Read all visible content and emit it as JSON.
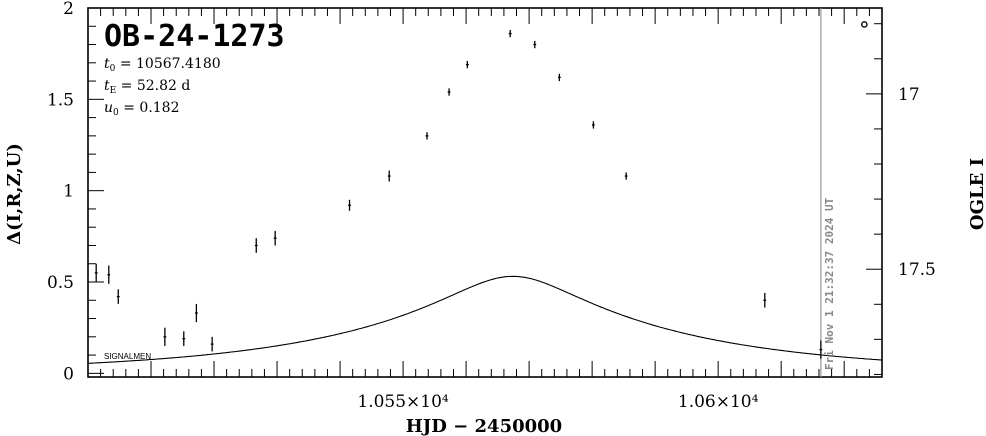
{
  "chart_data": {
    "type": "scatter",
    "title": "OB-24-1273",
    "params": {
      "t0": "10567.4180",
      "tE": "52.82",
      "tE_unit": "d",
      "u0": "0.182"
    },
    "xlabel": "HJD − 2450000",
    "ylabel_left": "Δ(I,R,Z,U)",
    "ylabel_right": "OGLE I",
    "xlim": [
      10500,
      10626
    ],
    "ylim": [
      -0.02,
      2.0
    ],
    "right_axis_mag_ticks": [
      {
        "mag": 17,
        "left_value": 1.53
      },
      {
        "mag": 17.5,
        "left_value": 0.57
      }
    ],
    "x_ticks": [
      {
        "value": 10550,
        "label": "1.055×10⁴"
      },
      {
        "value": 10600,
        "label": "1.06×10⁴"
      }
    ],
    "y_ticks": [
      {
        "value": 0,
        "label": "0"
      },
      {
        "value": 0.5,
        "label": "0.5"
      },
      {
        "value": 1,
        "label": "1"
      },
      {
        "value": 1.5,
        "label": "1.5"
      },
      {
        "value": 2,
        "label": "2"
      }
    ],
    "right_ticks": [
      {
        "label": "17"
      },
      {
        "label": "17.5"
      }
    ],
    "series": [
      {
        "x": [
          10501.3,
          10503.3,
          10504.8,
          10512.2,
          10515.2,
          10517.2,
          10519.7,
          10526.7,
          10529.7,
          10541.5,
          10547.8,
          10553.8,
          10557.3,
          10560.2,
          10567.0,
          10570.9,
          10574.8,
          10580.2,
          10585.4,
          10607.4,
          10616.3,
          10623.2
        ],
        "y": [
          0.55,
          0.54,
          0.42,
          0.2,
          0.19,
          0.33,
          0.16,
          0.7,
          0.74,
          0.92,
          1.08,
          1.3,
          1.54,
          1.69,
          1.86,
          1.8,
          1.62,
          1.36,
          1.08,
          0.4,
          0.13,
          1.91
        ],
        "err": [
          0.05,
          0.05,
          0.04,
          0.05,
          0.04,
          0.05,
          0.04,
          0.04,
          0.04,
          0.03,
          0.03,
          0.02,
          0.02,
          0.02,
          0.02,
          0.02,
          0.02,
          0.02,
          0.02,
          0.04,
          0.05,
          0.0
        ],
        "marker": [
          "bar",
          "bar",
          "bar",
          "bar",
          "bar",
          "bar",
          "bar",
          "bar",
          "bar",
          "bar",
          "bar",
          "bar",
          "bar",
          "bar",
          "bar",
          "bar",
          "bar",
          "bar",
          "bar",
          "bar",
          "bar",
          "circle"
        ]
      }
    ],
    "model": {
      "type": "point-lens microlensing fit",
      "t0": 10567.418,
      "tE": 52.82,
      "u0": 0.182,
      "mag_scale": 0.285
    },
    "annotations": [
      {
        "text": "SIGNALMEN"
      },
      {
        "text": "Fri Nov  1 21:32:37 2024 UT",
        "x": 10616.3,
        "orientation": "vertical"
      }
    ],
    "colors": {
      "data": "#000000",
      "model": "#000000",
      "now_line": "#999999",
      "stamp": "#888888"
    }
  }
}
